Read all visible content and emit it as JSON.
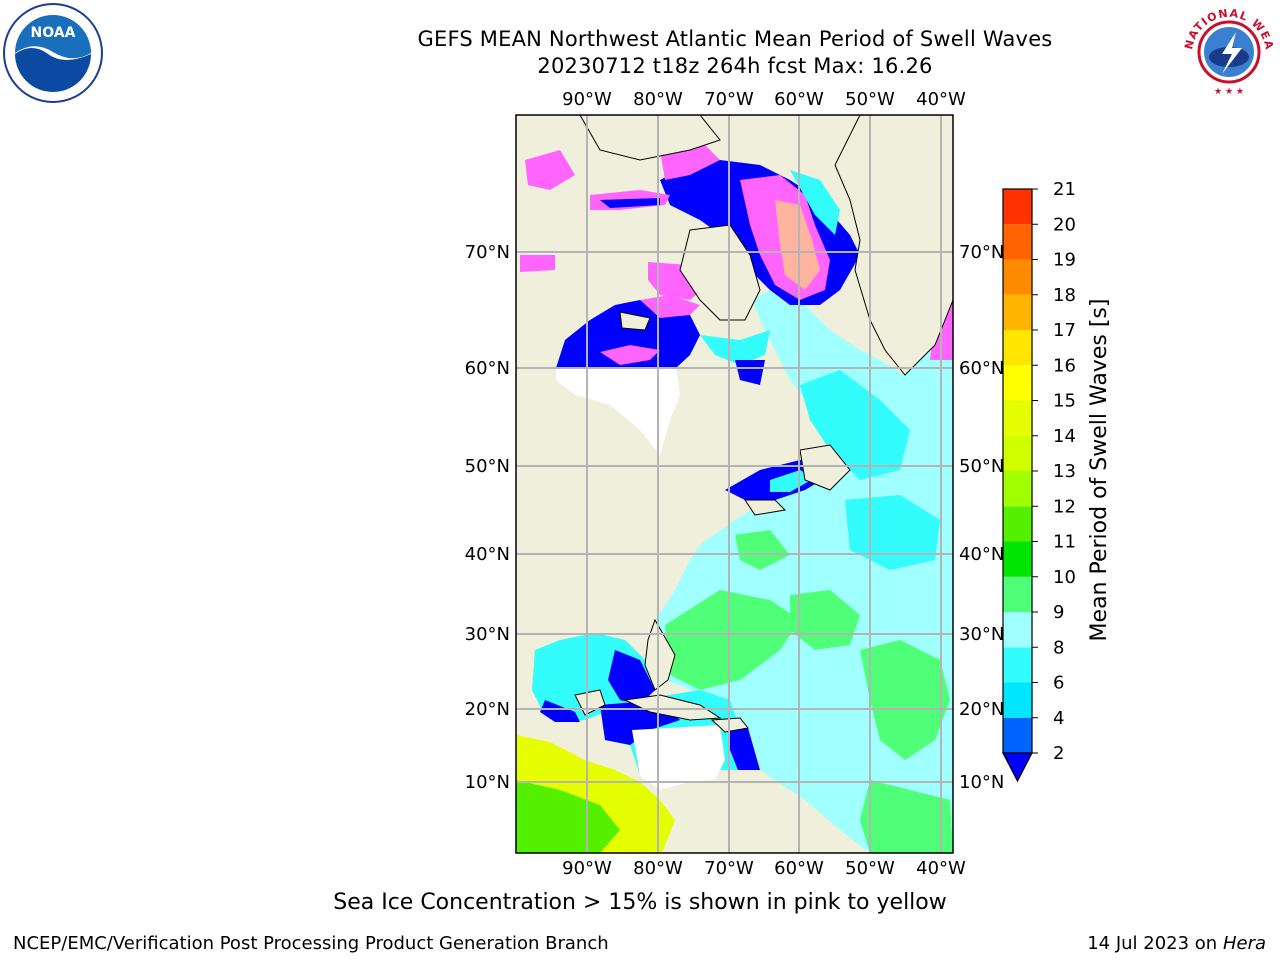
{
  "title": {
    "line1": "GEFS MEAN Northwest Atlantic Mean Period of Swell Waves",
    "line2": "20230712 t18z 264h fcst   Max: 16.26"
  },
  "map": {
    "region": "Northwest Atlantic",
    "lon_labels": [
      "90°W",
      "80°W",
      "70°W",
      "60°W",
      "50°W",
      "40°W"
    ],
    "lat_labels": [
      "70°N",
      "60°N",
      "50°N",
      "40°N",
      "30°N",
      "20°N",
      "10°N"
    ],
    "colors": {
      "land": "#f0efdc",
      "no_data": "#ffffff",
      "grid": "#b4b4b4",
      "coast": "#000000"
    }
  },
  "colorbar": {
    "label": "Mean Period of Swell Waves [s]",
    "ticks": [
      "2",
      "4",
      "6",
      "8",
      "9",
      "10",
      "11",
      "12",
      "13",
      "14",
      "15",
      "16",
      "17",
      "18",
      "19",
      "20",
      "21"
    ],
    "colors": [
      "#0064ff",
      "#00e6ff",
      "#32fcfc",
      "#a0ffff",
      "#50ff78",
      "#00e600",
      "#55f000",
      "#a0ff00",
      "#d2ff00",
      "#e6ff00",
      "#ffff00",
      "#ffe600",
      "#ffb400",
      "#ff8c00",
      "#ff6400",
      "#ff3200",
      "#ff0000"
    ],
    "extend_color": "#0000ff"
  },
  "ice_note": "Sea Ice Concentration > 15% is shown in pink to yellow",
  "footer": {
    "credit": "NCEP/EMC/Verification Post Processing Product Generation Branch",
    "date": "14 Jul 2023 on ",
    "host": "Hera"
  },
  "logos": {
    "noaa_text": "NOAA",
    "nws_text": "NATIONAL WEATHER SERVICE"
  }
}
